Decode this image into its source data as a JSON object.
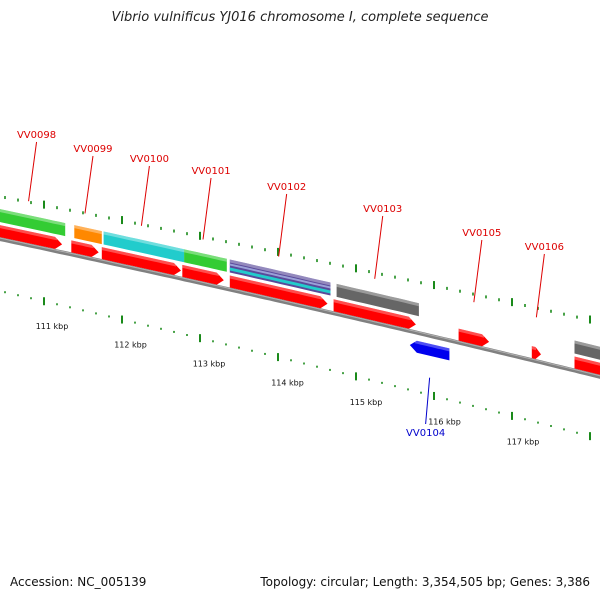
{
  "title": "Vibrio vulnificus YJ016 chromosome I, complete sequence",
  "footer": {
    "accession": "Accession: NC_005139",
    "summary": "Topology: circular; Length: 3,354,505 bp; Genes: 3,386"
  },
  "colors": {
    "gene_forward": "#ff0000",
    "gene_reverse": "#0000ee",
    "label_forward": "#dd0000",
    "label_reverse": "#0000cc",
    "backbone": "#808080",
    "tick": "#1a8a1a",
    "cog_green": "#33cc33",
    "cog_orange": "#ff8800",
    "cog_cyan": "#22cccc",
    "cog_gray": "#666666",
    "cog_purple": "#5a4a9a"
  },
  "kbp_labels": [
    "111 kbp",
    "112 kbp",
    "113 kbp",
    "114 kbp",
    "115 kbp",
    "116 kbp",
    "117 kbp"
  ],
  "genes": [
    {
      "name": "VV0098",
      "strand": "+",
      "t0": 0.0,
      "t1": 0.11
    },
    {
      "name": "VV0099",
      "strand": "+",
      "t0": 0.125,
      "t1": 0.17
    },
    {
      "name": "VV0100",
      "strand": "+",
      "t0": 0.175,
      "t1": 0.305
    },
    {
      "name": "VV0101",
      "strand": "+",
      "t0": 0.307,
      "t1": 0.375
    },
    {
      "name": "VV0102",
      "strand": "+",
      "t0": 0.385,
      "t1": 0.545
    },
    {
      "name": "VV0103",
      "strand": "+",
      "t0": 0.555,
      "t1": 0.69
    },
    {
      "name": "VV0104",
      "strand": "-",
      "t0": 0.68,
      "t1": 0.745
    },
    {
      "name": "VV0105",
      "strand": "+",
      "t0": 0.76,
      "t1": 0.81
    },
    {
      "name": "VV0106",
      "strand": "+",
      "t0": 0.88,
      "t1": 0.895
    },
    {
      "name": "",
      "strand": "+",
      "t0": 0.95,
      "t1": 1.05
    }
  ],
  "cog_blocks": [
    {
      "color": "cog_green",
      "t0": 0.0,
      "t1": 0.115
    },
    {
      "color": "cog_orange",
      "t0": 0.13,
      "t1": 0.175
    },
    {
      "color": "cog_cyan",
      "t0": 0.178,
      "t1": 0.31
    },
    {
      "color": "cog_green",
      "t0": 0.31,
      "t1": 0.38
    },
    {
      "color": "cog_purple",
      "t0": 0.385,
      "t1": 0.55
    },
    {
      "color": "cog_gray",
      "t0": 0.56,
      "t1": 0.695
    },
    {
      "color": "cog_gray",
      "t0": 0.95,
      "t1": 1.05
    }
  ]
}
